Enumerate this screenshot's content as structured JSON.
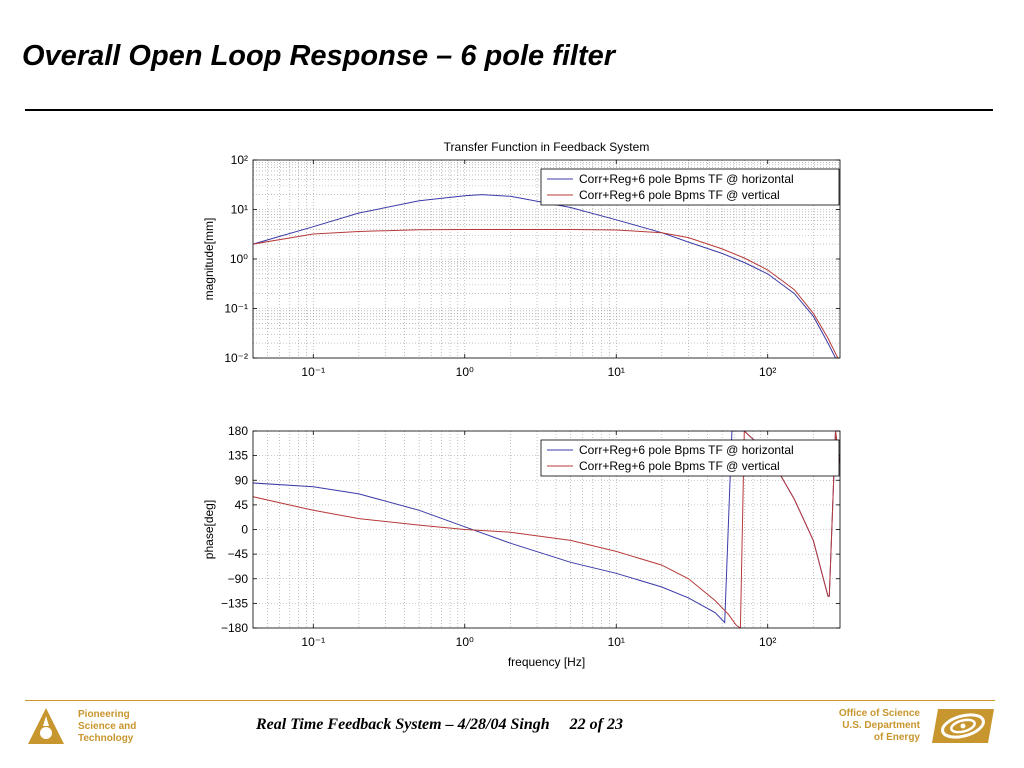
{
  "slide": {
    "title": "Overall Open Loop Response – 6 pole filter"
  },
  "footer": {
    "left_lines": [
      "Pioneering",
      "Science and",
      "Technology"
    ],
    "center_text": "Real Time Feedback System – 4/28/04 Singh",
    "page": "22 of 23",
    "right_lines": [
      "Office of Science",
      "U.S. Department",
      "of Energy"
    ]
  },
  "colors": {
    "accent": "#c8962e",
    "horizontal": "#3b3ba8",
    "vertical": "#b83a3a"
  },
  "icons": {
    "left_logo": "pioneering-science-logo-icon",
    "right_logo": "doe-seal-icon"
  },
  "chart_data": [
    {
      "type": "line",
      "title": "Transfer Function in Feedback System",
      "xlabel": "",
      "ylabel": "magnitude[mm]",
      "xscale": "log",
      "yscale": "log",
      "xlim": [
        0.04,
        300
      ],
      "ylim": [
        0.01,
        100
      ],
      "x_ticks": [
        0.1,
        1,
        10,
        100
      ],
      "x_tick_labels": [
        "10⁻¹",
        "10⁰",
        "10¹",
        "10²"
      ],
      "y_ticks": [
        0.01,
        0.1,
        1,
        10,
        100
      ],
      "y_tick_labels": [
        "10⁻²",
        "10⁻¹",
        "10⁰",
        "10¹",
        "10²"
      ],
      "grid": true,
      "legend": "top-right",
      "series": [
        {
          "name": "Corr+Reg+6 pole Bpms TF @ horizontal",
          "x": [
            0.04,
            0.1,
            0.2,
            0.5,
            1,
            1.3,
            2,
            5,
            10,
            20,
            30,
            50,
            70,
            100,
            150,
            200,
            250,
            280
          ],
          "y": [
            2.0,
            4.5,
            8.5,
            15,
            19,
            20,
            18.5,
            11,
            6.2,
            3.4,
            2.2,
            1.3,
            0.85,
            0.5,
            0.2,
            0.07,
            0.02,
            0.01
          ]
        },
        {
          "name": "Corr+Reg+6 pole Bpms TF @ vertical",
          "x": [
            0.04,
            0.1,
            0.2,
            0.5,
            1,
            2,
            5,
            10,
            20,
            30,
            50,
            70,
            100,
            150,
            200,
            250,
            290
          ],
          "y": [
            2.0,
            3.2,
            3.6,
            3.9,
            3.95,
            3.95,
            3.95,
            3.85,
            3.4,
            2.7,
            1.6,
            1.05,
            0.6,
            0.24,
            0.08,
            0.025,
            0.01
          ]
        }
      ]
    },
    {
      "type": "line",
      "title": "",
      "xlabel": "frequency [Hz]",
      "ylabel": "phase[deg]",
      "xscale": "log",
      "yscale": "linear",
      "xlim": [
        0.04,
        300
      ],
      "ylim": [
        -180,
        180
      ],
      "x_ticks": [
        0.1,
        1,
        10,
        100
      ],
      "x_tick_labels": [
        "10⁻¹",
        "10⁰",
        "10¹",
        "10²"
      ],
      "y_ticks": [
        -180,
        -135,
        -90,
        -45,
        0,
        45,
        90,
        135,
        180
      ],
      "y_tick_labels": [
        "−180",
        "−135",
        "−90",
        "−45",
        "0",
        "45",
        "90",
        "135",
        "180"
      ],
      "grid": true,
      "legend": "top-right",
      "series": [
        {
          "name": "Corr+Reg+6 pole Bpms TF @ horizontal",
          "x": [
            0.04,
            0.1,
            0.2,
            0.5,
            1,
            2,
            5,
            10,
            20,
            30,
            45,
            52,
            58,
            70,
            100,
            150,
            200,
            250,
            255,
            280,
            300
          ],
          "y": [
            85,
            78,
            65,
            35,
            5,
            -25,
            -60,
            -80,
            -105,
            -125,
            -152,
            -170,
            180,
            180,
            140,
            55,
            -20,
            -122,
            -122,
            180,
            120
          ]
        },
        {
          "name": "Corr+Reg+6 pole Bpms TF @ vertical",
          "x": [
            0.04,
            0.1,
            0.2,
            0.5,
            1,
            2,
            5,
            10,
            20,
            30,
            45,
            55,
            62,
            66,
            70,
            100,
            150,
            200,
            250,
            255,
            280,
            300
          ],
          "y": [
            60,
            35,
            20,
            8,
            0,
            -5,
            -20,
            -40,
            -65,
            -90,
            -130,
            -155,
            -175,
            -180,
            180,
            140,
            55,
            -20,
            -122,
            -122,
            180,
            120
          ]
        }
      ]
    }
  ]
}
